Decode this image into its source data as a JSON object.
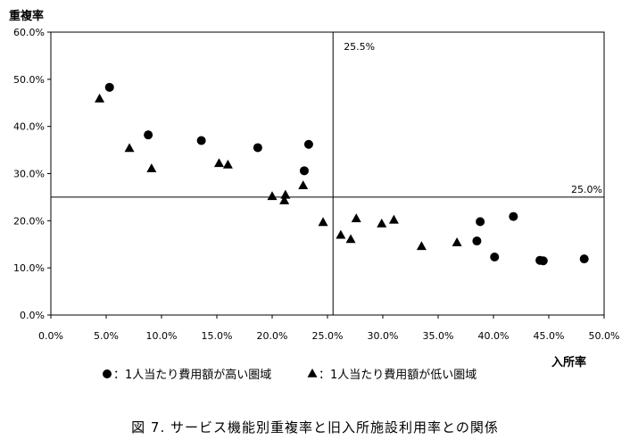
{
  "chart_data": {
    "type": "scatter",
    "ylabel": "重複率",
    "xlabel": "入所率",
    "caption": "図 7. サービス機能別重複率と旧入所施設利用率との関係",
    "xlim": [
      0,
      50
    ],
    "ylim": [
      0,
      60
    ],
    "x_ticks": [
      "0.0%",
      "5.0%",
      "10.0%",
      "15.0%",
      "20.0%",
      "25.0%",
      "30.0%",
      "35.0%",
      "40.0%",
      "45.0%",
      "50.0%"
    ],
    "y_ticks": [
      "0.0%",
      "10.0%",
      "20.0%",
      "30.0%",
      "40.0%",
      "50.0%",
      "60.0%"
    ],
    "grid": false,
    "reference_lines": [
      {
        "axis": "x",
        "value": 25.5,
        "label": "25.5%"
      },
      {
        "axis": "y",
        "value": 25.0,
        "label": "25.0%"
      }
    ],
    "legend_position": "bottom",
    "series": [
      {
        "name": "●：1人当たり費用額が高い圏域",
        "marker": "circle",
        "color": "#000000",
        "points": [
          [
            5.3,
            48.3
          ],
          [
            8.8,
            38.2
          ],
          [
            13.6,
            37.0
          ],
          [
            18.7,
            35.5
          ],
          [
            23.3,
            36.2
          ],
          [
            22.9,
            30.6
          ],
          [
            38.8,
            19.8
          ],
          [
            38.5,
            15.7
          ],
          [
            41.8,
            20.9
          ],
          [
            40.1,
            12.3
          ],
          [
            44.2,
            11.6
          ],
          [
            44.5,
            11.5
          ],
          [
            48.2,
            11.9
          ]
        ]
      },
      {
        "name": "▲：1人当たり費用額が低い圏域",
        "marker": "triangle",
        "color": "#000000",
        "points": [
          [
            4.4,
            45.8
          ],
          [
            7.1,
            35.3
          ],
          [
            9.1,
            31.0
          ],
          [
            15.2,
            32.1
          ],
          [
            16.0,
            31.8
          ],
          [
            20.0,
            25.1
          ],
          [
            21.2,
            25.4
          ],
          [
            21.1,
            24.2
          ],
          [
            22.8,
            27.4
          ],
          [
            24.6,
            19.6
          ],
          [
            26.2,
            16.9
          ],
          [
            27.1,
            16.0
          ],
          [
            27.6,
            20.4
          ],
          [
            29.9,
            19.3
          ],
          [
            31.0,
            20.1
          ],
          [
            33.5,
            14.5
          ],
          [
            36.7,
            15.3
          ]
        ]
      }
    ]
  }
}
